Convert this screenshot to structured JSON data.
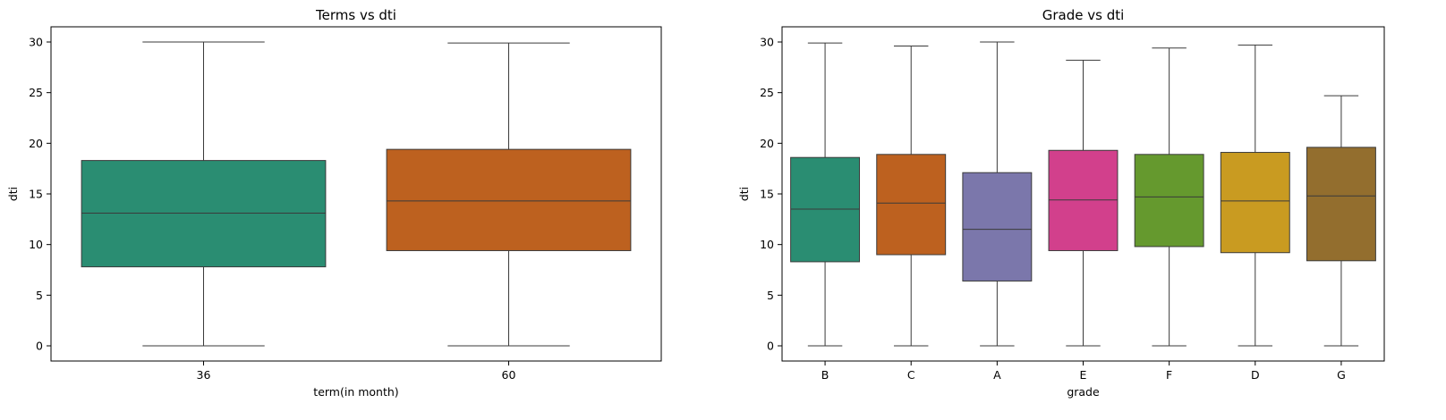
{
  "chart_data": [
    {
      "type": "boxplot",
      "title": "Terms vs dti",
      "xlabel": "term(in month)",
      "ylabel": "dti",
      "ylim": [
        -1.5,
        31.5
      ],
      "yticks": [
        0,
        5,
        10,
        15,
        20,
        25,
        30
      ],
      "grid": false,
      "categories": [
        "36",
        "60"
      ],
      "boxes": [
        {
          "category": "36",
          "whisker_low": 0,
          "q1": 7.8,
          "median": 13.1,
          "q3": 18.3,
          "whisker_high": 30,
          "color": "#2a8d72"
        },
        {
          "category": "60",
          "whisker_low": 0,
          "q1": 9.4,
          "median": 14.3,
          "q3": 19.4,
          "whisker_high": 29.9,
          "color": "#bd611f"
        }
      ]
    },
    {
      "type": "boxplot",
      "title": "Grade vs dti",
      "xlabel": "grade",
      "ylabel": "dti",
      "ylim": [
        -1.5,
        31.5
      ],
      "yticks": [
        0,
        5,
        10,
        15,
        20,
        25,
        30
      ],
      "grid": false,
      "categories": [
        "B",
        "C",
        "A",
        "E",
        "F",
        "D",
        "G"
      ],
      "boxes": [
        {
          "category": "B",
          "whisker_low": 0,
          "q1": 8.3,
          "median": 13.5,
          "q3": 18.6,
          "whisker_high": 29.9,
          "color": "#2a8d72"
        },
        {
          "category": "C",
          "whisker_low": 0,
          "q1": 9.0,
          "median": 14.1,
          "q3": 18.9,
          "whisker_high": 29.6,
          "color": "#bd611f"
        },
        {
          "category": "A",
          "whisker_low": 0,
          "q1": 6.4,
          "median": 11.5,
          "q3": 17.1,
          "whisker_high": 30,
          "color": "#7b77ab"
        },
        {
          "category": "E",
          "whisker_low": 0,
          "q1": 9.4,
          "median": 14.4,
          "q3": 19.3,
          "whisker_high": 28.2,
          "color": "#d2408c"
        },
        {
          "category": "F",
          "whisker_low": 0,
          "q1": 9.8,
          "median": 14.7,
          "q3": 18.9,
          "whisker_high": 29.4,
          "color": "#65992e"
        },
        {
          "category": "D",
          "whisker_low": 0,
          "q1": 9.2,
          "median": 14.3,
          "q3": 19.1,
          "whisker_high": 29.7,
          "color": "#c99b21"
        },
        {
          "category": "G",
          "whisker_low": 0,
          "q1": 8.4,
          "median": 14.8,
          "q3": 19.6,
          "whisker_high": 24.7,
          "color": "#936e2e"
        }
      ]
    }
  ]
}
